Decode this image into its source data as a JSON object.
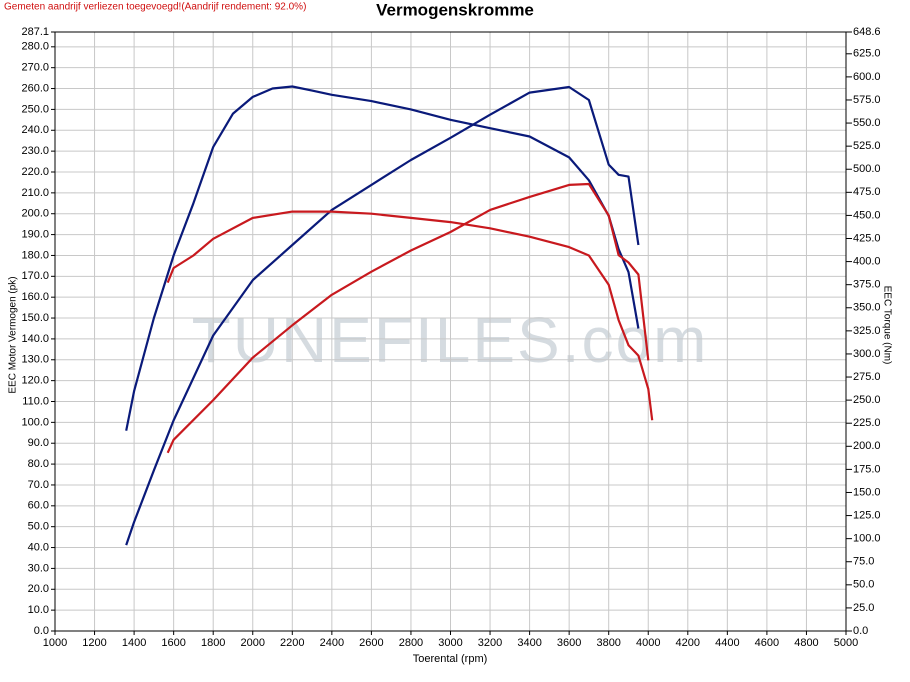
{
  "note_top": "Gemeten aandrijf verliezen toegevoegd!(Aandrijf rendement: 92.0%)",
  "watermark": "TUNEFILES.com",
  "chart_data": {
    "type": "line",
    "title": "Vermogenskromme",
    "x_label": "Toerental (rpm)",
    "y_label": "EEC Motor Vermogen (pk)",
    "y2_label": "EEC Torque (Nm)",
    "xlim": [
      1000,
      5000
    ],
    "xticks": [
      1000,
      1200,
      1400,
      1600,
      1800,
      2000,
      2200,
      2400,
      2600,
      2800,
      3000,
      3200,
      3400,
      3600,
      3800,
      4000,
      4200,
      4400,
      4600,
      4800,
      5000
    ],
    "ylim": [
      0,
      287.1
    ],
    "yticks": [
      {
        "value": 0,
        "label": "0.0"
      },
      {
        "value": 10,
        "label": "10.0"
      },
      {
        "value": 20,
        "label": "20.0"
      },
      {
        "value": 30,
        "label": "30.0"
      },
      {
        "value": 40,
        "label": "40.0"
      },
      {
        "value": 50,
        "label": "50.0"
      },
      {
        "value": 60,
        "label": "60.0"
      },
      {
        "value": 70,
        "label": "70.0"
      },
      {
        "value": 80,
        "label": "80.0"
      },
      {
        "value": 90,
        "label": "90.0"
      },
      {
        "value": 100,
        "label": "100.0"
      },
      {
        "value": 110,
        "label": "110.0"
      },
      {
        "value": 120,
        "label": "120.0"
      },
      {
        "value": 130,
        "label": "130.0"
      },
      {
        "value": 140,
        "label": "140.0"
      },
      {
        "value": 150,
        "label": "150.0"
      },
      {
        "value": 160,
        "label": "160.0"
      },
      {
        "value": 170,
        "label": "170.0"
      },
      {
        "value": 180,
        "label": "180.0"
      },
      {
        "value": 190,
        "label": "190.0"
      },
      {
        "value": 200,
        "label": "200.0"
      },
      {
        "value": 210,
        "label": "210.0"
      },
      {
        "value": 220,
        "label": "220.0"
      },
      {
        "value": 230,
        "label": "230.0"
      },
      {
        "value": 240,
        "label": "240.0"
      },
      {
        "value": 250,
        "label": "250.0"
      },
      {
        "value": 260,
        "label": "260.0"
      },
      {
        "value": 270,
        "label": "270.0"
      },
      {
        "value": 280,
        "label": "280.0"
      },
      287.1
    ],
    "y2lim": [
      0,
      648.6
    ],
    "y2ticks": [
      {
        "value": 0,
        "label": "0.0"
      },
      {
        "value": 25,
        "label": "25.0"
      },
      {
        "value": 50,
        "label": "50.0"
      },
      {
        "value": 75,
        "label": "75.0"
      },
      {
        "value": 100,
        "label": "100.0"
      },
      {
        "value": 125,
        "label": "125.0"
      },
      {
        "value": 150,
        "label": "150.0"
      },
      {
        "value": 175,
        "label": "175.0"
      },
      {
        "value": 200,
        "label": "200.0"
      },
      {
        "value": 225,
        "label": "225.0"
      },
      {
        "value": 250,
        "label": "250.0"
      },
      {
        "value": 275,
        "label": "275.0"
      },
      {
        "value": 300,
        "label": "300.0"
      },
      {
        "value": 325,
        "label": "325.0"
      },
      {
        "value": 350,
        "label": "350.0"
      },
      {
        "value": 375,
        "label": "375.0"
      },
      {
        "value": 400,
        "label": "400.0"
      },
      {
        "value": 425,
        "label": "425.0"
      },
      {
        "value": 450,
        "label": "450.0"
      },
      {
        "value": 475,
        "label": "475.0"
      },
      {
        "value": 500,
        "label": "500.0"
      },
      {
        "value": 525,
        "label": "525.0"
      },
      {
        "value": 550,
        "label": "550.0"
      },
      {
        "value": 575,
        "label": "575.0"
      },
      {
        "value": 600,
        "label": "600.0"
      },
      {
        "value": 625,
        "label": "625.0"
      },
      648.6
    ],
    "grid": true,
    "series": [
      {
        "color": "#0a1a7a",
        "x": [
          1360,
          1400,
          1500,
          1600,
          1700,
          1800,
          1900,
          2000,
          2100,
          2200,
          2300,
          2400,
          2600,
          2800,
          3000,
          3200,
          3400,
          3600,
          3700,
          3800,
          3850,
          3900,
          3950
        ],
        "values": [
          96,
          115,
          150,
          180,
          205,
          232,
          248,
          256,
          260,
          261,
          259,
          257,
          254,
          250,
          245,
          241,
          237,
          227,
          216,
          199,
          183,
          172,
          145
        ]
      },
      {
        "color": "#0a1a7a",
        "axis": "y2",
        "x": [
          1360,
          1400,
          1500,
          1600,
          1800,
          2000,
          2200,
          2400,
          2600,
          2800,
          3000,
          3200,
          3400,
          3600,
          3700,
          3800,
          3850,
          3900,
          3950
        ],
        "values": [
          93,
          118,
          174,
          228,
          320,
          380,
          418,
          456,
          483,
          510,
          534,
          559,
          583,
          589,
          575,
          505,
          494,
          492,
          418
        ]
      },
      {
        "color": "#c8191e",
        "x": [
          1570,
          1600,
          1700,
          1800,
          2000,
          2200,
          2400,
          2600,
          2800,
          3000,
          3200,
          3400,
          3600,
          3700,
          3800,
          3850,
          3900,
          3950,
          4000,
          4020
        ],
        "values": [
          167,
          174,
          180,
          188,
          198,
          201,
          201,
          200,
          198,
          196,
          193,
          189,
          184,
          180,
          166,
          149,
          137,
          132,
          116,
          101
        ]
      },
      {
        "color": "#c8191e",
        "axis": "y2",
        "x": [
          1570,
          1600,
          1800,
          2000,
          2200,
          2400,
          2600,
          2800,
          3000,
          3200,
          3400,
          3600,
          3700,
          3800,
          3850,
          3900,
          3950,
          4000
        ],
        "values": [
          193,
          207,
          250,
          296,
          331,
          364,
          389,
          412,
          432,
          456,
          470,
          483,
          484,
          450,
          407,
          399,
          386,
          293
        ]
      }
    ]
  }
}
